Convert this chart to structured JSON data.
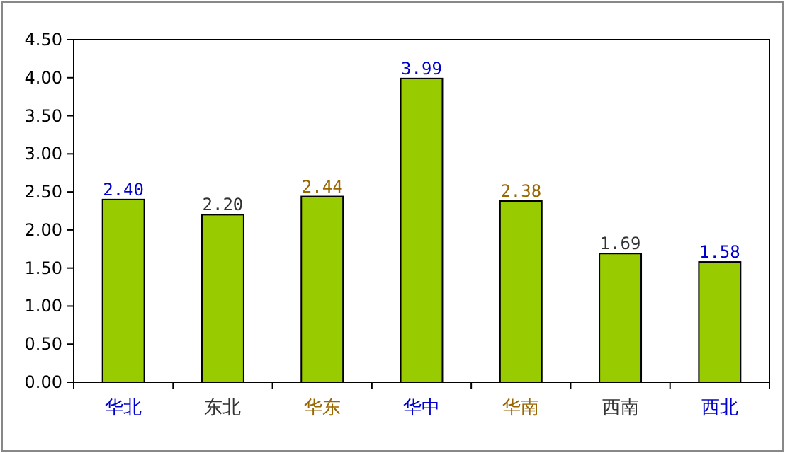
{
  "chart_data": {
    "type": "bar",
    "categories": [
      "华北",
      "东北",
      "华东",
      "华中",
      "华南",
      "西南",
      "西北"
    ],
    "values": [
      2.4,
      2.2,
      2.44,
      3.99,
      2.38,
      1.69,
      1.58
    ],
    "value_labels": [
      "2.40",
      "2.20",
      "2.44",
      "3.99",
      "2.38",
      "1.69",
      "1.58"
    ],
    "color": "#99cc00",
    "ylim": [
      0,
      4.5
    ],
    "yticks": [
      {
        "value": 0,
        "label": "0.00"
      },
      {
        "value": 0.5,
        "label": "0.50"
      },
      {
        "value": 1,
        "label": "1.00"
      },
      {
        "value": 1.5,
        "label": "1.50"
      },
      {
        "value": 2,
        "label": "2.00"
      },
      {
        "value": 2.5,
        "label": "2.50"
      },
      {
        "value": 3,
        "label": "3.00"
      },
      {
        "value": 3.5,
        "label": "3.50"
      },
      {
        "value": 4,
        "label": "4.00"
      },
      {
        "value": 4.5,
        "label": "4.50"
      }
    ],
    "grid": false
  }
}
